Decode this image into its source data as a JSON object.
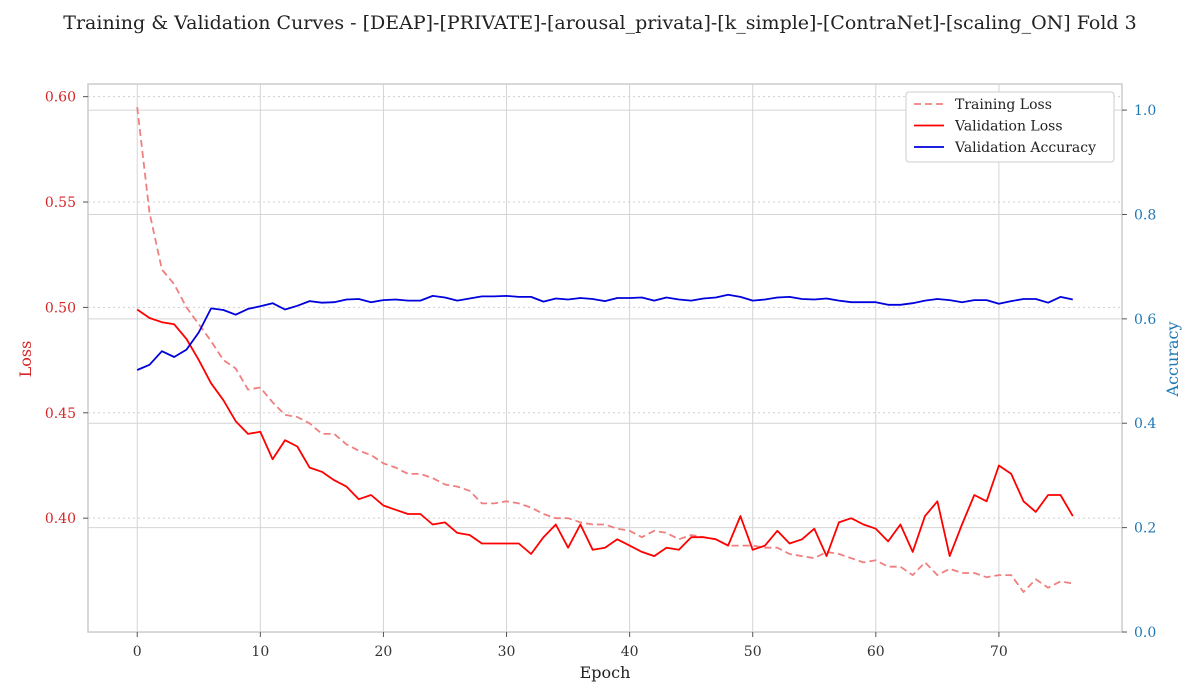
{
  "chart_data": {
    "type": "line",
    "title": "Training & Validation Curves - [DEAP]-[PRIVATE]-[arousal_privata]-[k_simple]-[ContraNet]-[scaling_ON] Fold 3",
    "xlabel": "Epoch",
    "ylabel_left": "Loss",
    "ylabel_right": "Accuracy",
    "xlim": [
      -4,
      80
    ],
    "ylim_left": [
      0.346,
      0.606
    ],
    "ylim_right": [
      0.0,
      1.05
    ],
    "x_ticks": [
      0,
      10,
      20,
      30,
      40,
      50,
      60,
      70
    ],
    "y_ticks_left": [
      0.4,
      0.45,
      0.5,
      0.55,
      0.6
    ],
    "y_ticks_right": [
      0.0,
      0.2,
      0.4,
      0.6,
      0.8,
      1.0
    ],
    "y_tick_labels_left": [
      "0.40",
      "0.45",
      "0.50",
      "0.55",
      "0.60"
    ],
    "y_tick_labels_right": [
      "0.0",
      "0.2",
      "0.4",
      "0.6",
      "0.8",
      "1.0"
    ],
    "grid": true,
    "legend_position": "top-right",
    "colors": {
      "training_loss": "#f08080",
      "validation_loss": "#ff0000",
      "validation_accuracy": "#0000dd",
      "left_axis": "#d62728",
      "right_axis": "#1f77b4"
    },
    "x": [
      0,
      1,
      2,
      3,
      4,
      5,
      6,
      7,
      8,
      9,
      10,
      11,
      12,
      13,
      14,
      15,
      16,
      17,
      18,
      19,
      20,
      21,
      22,
      23,
      24,
      25,
      26,
      27,
      28,
      29,
      30,
      31,
      32,
      33,
      34,
      35,
      36,
      37,
      38,
      39,
      40,
      41,
      42,
      43,
      44,
      45,
      46,
      47,
      48,
      49,
      50,
      51,
      52,
      53,
      54,
      55,
      56,
      57,
      58,
      59,
      60,
      61,
      62,
      63,
      64,
      65,
      66,
      67,
      68,
      69,
      70,
      71,
      72,
      73,
      74,
      75,
      76
    ],
    "series": [
      {
        "name": "Training Loss",
        "axis": "left",
        "style": "dashed",
        "values": [
          0.595,
          0.545,
          0.518,
          0.511,
          0.5,
          0.492,
          0.484,
          0.475,
          0.471,
          0.461,
          0.462,
          0.455,
          0.449,
          0.448,
          0.445,
          0.44,
          0.44,
          0.435,
          0.432,
          0.43,
          0.426,
          0.424,
          0.421,
          0.421,
          0.419,
          0.416,
          0.415,
          0.413,
          0.407,
          0.407,
          0.408,
          0.407,
          0.405,
          0.402,
          0.4,
          0.4,
          0.398,
          0.397,
          0.397,
          0.395,
          0.394,
          0.391,
          0.394,
          0.393,
          0.39,
          0.392,
          0.391,
          0.39,
          0.387,
          0.387,
          0.387,
          0.386,
          0.386,
          0.383,
          0.382,
          0.381,
          0.384,
          0.383,
          0.381,
          0.379,
          0.38,
          0.377,
          0.377,
          0.373,
          0.379,
          0.373,
          0.376,
          0.374,
          0.374,
          0.372,
          0.373,
          0.373,
          0.365,
          0.371,
          0.367,
          0.37,
          0.369
        ]
      },
      {
        "name": "Validation Loss",
        "axis": "left",
        "style": "solid",
        "values": [
          0.499,
          0.495,
          0.493,
          0.492,
          0.485,
          0.475,
          0.464,
          0.456,
          0.446,
          0.44,
          0.441,
          0.428,
          0.437,
          0.434,
          0.424,
          0.422,
          0.418,
          0.415,
          0.409,
          0.411,
          0.406,
          0.404,
          0.402,
          0.402,
          0.397,
          0.398,
          0.393,
          0.392,
          0.388,
          0.388,
          0.388,
          0.388,
          0.383,
          0.391,
          0.397,
          0.386,
          0.397,
          0.385,
          0.386,
          0.39,
          0.387,
          0.384,
          0.382,
          0.386,
          0.385,
          0.391,
          0.391,
          0.39,
          0.387,
          0.401,
          0.385,
          0.387,
          0.394,
          0.388,
          0.39,
          0.395,
          0.382,
          0.398,
          0.4,
          0.397,
          0.395,
          0.389,
          0.397,
          0.384,
          0.401,
          0.408,
          0.382,
          0.397,
          0.411,
          0.408,
          0.425,
          0.421,
          0.408,
          0.403,
          0.411,
          0.411,
          0.401
        ]
      },
      {
        "name": "Validation Accuracy",
        "axis": "right",
        "style": "solid",
        "values": [
          0.502,
          0.512,
          0.538,
          0.527,
          0.541,
          0.574,
          0.62,
          0.617,
          0.608,
          0.619,
          0.624,
          0.63,
          0.618,
          0.625,
          0.634,
          0.631,
          0.632,
          0.637,
          0.638,
          0.632,
          0.636,
          0.637,
          0.635,
          0.635,
          0.644,
          0.641,
          0.635,
          0.639,
          0.643,
          0.643,
          0.644,
          0.642,
          0.642,
          0.633,
          0.639,
          0.637,
          0.64,
          0.638,
          0.634,
          0.64,
          0.64,
          0.641,
          0.635,
          0.641,
          0.637,
          0.635,
          0.639,
          0.641,
          0.646,
          0.642,
          0.635,
          0.637,
          0.641,
          0.642,
          0.638,
          0.637,
          0.639,
          0.635,
          0.632,
          0.632,
          0.632,
          0.627,
          0.627,
          0.63,
          0.635,
          0.638,
          0.636,
          0.632,
          0.636,
          0.636,
          0.629,
          0.634,
          0.638,
          0.638,
          0.631,
          0.642,
          0.637
        ]
      }
    ]
  }
}
